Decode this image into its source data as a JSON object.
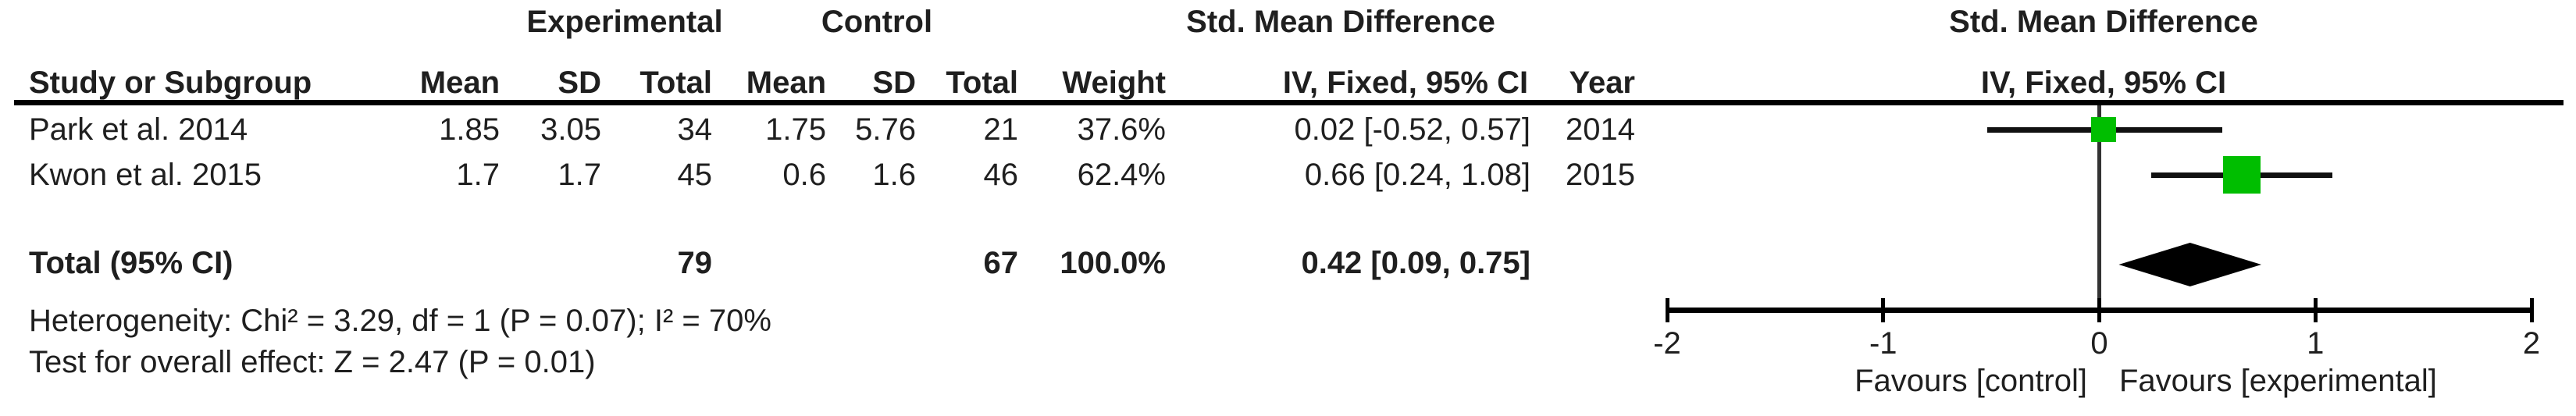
{
  "header": {
    "group_experimental": "Experimental",
    "group_control": "Control",
    "effect_title": "Std. Mean Difference",
    "effect_subtitle": "IV, Fixed, 95% CI",
    "plot_title": "Std. Mean Difference",
    "plot_subtitle": "IV, Fixed, 95% CI",
    "cols": {
      "study": "Study or Subgroup",
      "mean_e": "Mean",
      "sd_e": "SD",
      "total_e": "Total",
      "mean_c": "Mean",
      "sd_c": "SD",
      "total_c": "Total",
      "weight": "Weight",
      "year": "Year"
    }
  },
  "rows": [
    {
      "study": "Park et al. 2014",
      "mean_e": "1.85",
      "sd_e": "3.05",
      "total_e": "34",
      "mean_c": "1.75",
      "sd_c": "5.76",
      "total_c": "21",
      "weight": "37.6%",
      "ci": "0.02 [-0.52, 0.57]",
      "year": "2014"
    },
    {
      "study": "Kwon et al. 2015",
      "mean_e": "1.7",
      "sd_e": "1.7",
      "total_e": "45",
      "mean_c": "0.6",
      "sd_c": "1.6",
      "total_c": "46",
      "weight": "62.4%",
      "ci": "0.66 [0.24, 1.08]",
      "year": "2015"
    }
  ],
  "total_row": {
    "label": "Total (95% CI)",
    "total_e": "79",
    "total_c": "67",
    "weight": "100.0%",
    "ci": "0.42 [0.09, 0.75]"
  },
  "footnotes": {
    "heterogeneity": "Heterogeneity: Chi² = 3.29, df = 1 (P = 0.07); I² = 70%",
    "overall_effect": "Test for overall effect: Z = 2.47 (P = 0.01)"
  },
  "axis": {
    "favours_left": "Favours [control]",
    "favours_right": "Favours [experimental]"
  },
  "chart_data": {
    "type": "forest",
    "title": "Std. Mean Difference",
    "method": "IV, Fixed, 95% CI",
    "x_axis": {
      "min": -2,
      "max": 2,
      "ticks": [
        -2,
        -1,
        0,
        1,
        2
      ],
      "zero_line": 0
    },
    "tick_labels": [
      "-2",
      "-1",
      "0",
      "1",
      "2"
    ],
    "studies": [
      {
        "name": "Park et al. 2014",
        "effect": 0.02,
        "ci_low": -0.52,
        "ci_high": 0.57,
        "weight_pct": 37.6,
        "year": 2014
      },
      {
        "name": "Kwon et al. 2015",
        "effect": 0.66,
        "ci_low": 0.24,
        "ci_high": 1.08,
        "weight_pct": 62.4,
        "year": 2015
      }
    ],
    "total": {
      "effect": 0.42,
      "ci_low": 0.09,
      "ci_high": 0.75
    },
    "heterogeneity": {
      "chi2": 3.29,
      "df": 1,
      "p": 0.07,
      "i2_pct": 70
    },
    "overall_test": {
      "z": 2.47,
      "p": 0.01
    },
    "marker_color": "#00BE00",
    "diamond_color": "#000000"
  }
}
